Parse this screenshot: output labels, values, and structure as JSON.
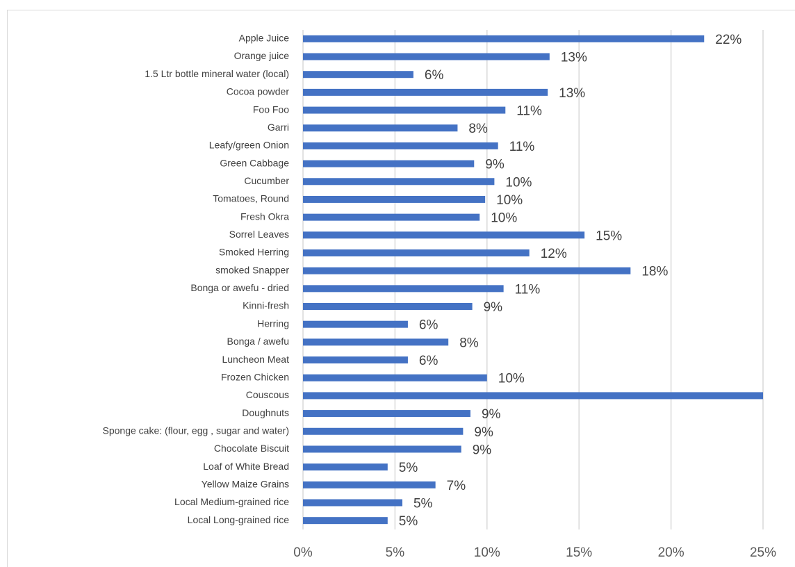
{
  "chart_data": {
    "type": "bar",
    "orientation": "horizontal",
    "categories": [
      "Apple Juice",
      "Orange juice",
      "1.5 Ltr bottle mineral water (local)",
      "Cocoa powder",
      "Foo Foo",
      "Garri",
      "Leafy/green Onion",
      "Green Cabbage",
      "Cucumber",
      "Tomatoes, Round",
      "Fresh Okra",
      "Sorrel Leaves",
      "Smoked Herring",
      "smoked Snapper",
      "Bonga or awefu - dried",
      "Kinni-fresh",
      "Herring",
      "Bonga / awefu",
      "Luncheon Meat",
      "Frozen Chicken",
      "Couscous",
      "Doughnuts",
      "Sponge cake: (flour, egg , sugar and water)",
      "Chocolate Biscuit",
      "Loaf of White Bread",
      "Yellow Maize Grains",
      "Local Medium-grained rice",
      "Local Long-grained rice"
    ],
    "values": [
      21.8,
      13.4,
      6.0,
      13.3,
      11.0,
      8.4,
      10.6,
      9.3,
      10.4,
      9.9,
      9.6,
      15.3,
      12.3,
      17.8,
      10.9,
      9.2,
      5.7,
      7.9,
      5.7,
      10.0,
      25,
      9.1,
      8.7,
      8.6,
      4.6,
      7.2,
      5.4,
      4.6
    ],
    "value_labels": [
      "22%",
      "13%",
      "6%",
      "13%",
      "11%",
      "8%",
      "11%",
      "9%",
      "10%",
      "10%",
      "10%",
      "15%",
      "12%",
      "18%",
      "11%",
      "9%",
      "6%",
      "8%",
      "6%",
      "10%",
      null,
      "9%",
      "9%",
      "9%",
      "5%",
      "7%",
      "5%",
      "5%"
    ],
    "color": "#4472c4",
    "xlim": [
      0,
      25
    ],
    "xticks": [
      {
        "value": 0,
        "label": "0%"
      },
      {
        "value": 5,
        "label": "5%"
      },
      {
        "value": 10,
        "label": "10%"
      },
      {
        "value": 15,
        "label": "15%"
      },
      {
        "value": 20,
        "label": "20%"
      },
      {
        "value": 25,
        "label": "25%"
      }
    ],
    "grid": true
  }
}
